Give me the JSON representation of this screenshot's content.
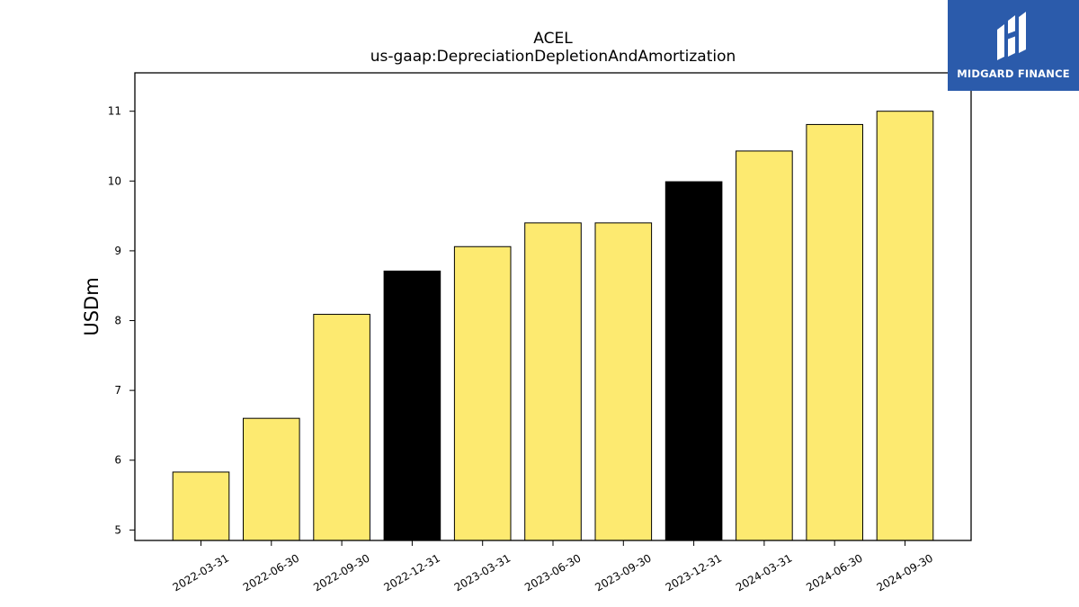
{
  "chart_data": {
    "type": "bar",
    "title": "ACEL",
    "subtitle": "us-gaap:DepreciationDepletionAndAmortization",
    "xlabel": "",
    "ylabel": "USDm",
    "categories": [
      "2022-03-31",
      "2022-06-30",
      "2022-09-30",
      "2022-12-31",
      "2023-03-31",
      "2023-06-30",
      "2023-09-30",
      "2023-12-31",
      "2024-03-31",
      "2024-06-30",
      "2024-09-30"
    ],
    "values": [
      5.83,
      6.6,
      8.09,
      8.71,
      9.06,
      9.4,
      9.4,
      9.99,
      10.43,
      10.81,
      11.0
    ],
    "highlight": [
      false,
      false,
      false,
      true,
      false,
      false,
      false,
      true,
      false,
      false,
      false
    ],
    "ylim": [
      4.85,
      11.55
    ],
    "yticks": [
      5,
      6,
      7,
      8,
      9,
      10,
      11
    ],
    "grid": false,
    "colors": {
      "bar": "#fdea70",
      "highlight": "#000000",
      "edge": "#000000"
    }
  },
  "logo": {
    "text": "MIDGARD FINANCE",
    "background": "#2b5bab",
    "icon": "midgard-logo-icon"
  }
}
